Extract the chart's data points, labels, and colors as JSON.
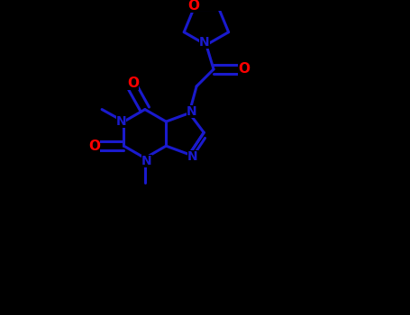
{
  "background_color": "#000000",
  "bond_color": "#1a1acd",
  "atom_colors": {
    "O": "#FF0000",
    "N": "#1a1acd",
    "C": "#1a1acd"
  },
  "bond_width": 2.2,
  "figsize": [
    4.55,
    3.5
  ],
  "dpi": 100
}
